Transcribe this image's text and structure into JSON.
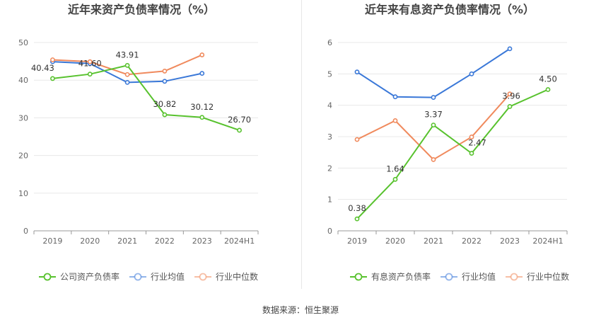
{
  "source_label": "数据来源：恒生聚源",
  "chart_data": [
    {
      "type": "line",
      "title": "近年来资产负债率情况（%）",
      "categories": [
        "2019",
        "2020",
        "2021",
        "2022",
        "2023",
        "2024H1"
      ],
      "ylim": [
        0,
        50
      ],
      "yticks": [
        "0",
        "10",
        "20",
        "30",
        "40",
        "50"
      ],
      "grid": true,
      "legend_position": "bottom",
      "series": [
        {
          "name": "公司资产负债率",
          "color": "#58c22e",
          "values": [
            40.43,
            41.6,
            43.91,
            30.82,
            30.12,
            26.7
          ],
          "labels": [
            "40.43",
            "41.60",
            "43.91",
            "30.82",
            "30.12",
            "26.70"
          ]
        },
        {
          "name": "行业均值",
          "color": "#3a78d8",
          "values": [
            44.9,
            44.4,
            39.4,
            39.7,
            41.8,
            null
          ]
        },
        {
          "name": "行业中位数",
          "color": "#f08a5d",
          "values": [
            45.4,
            44.9,
            41.5,
            42.4,
            46.7,
            null
          ]
        }
      ]
    },
    {
      "type": "line",
      "title": "近年来有息资产负债率情况（%）",
      "categories": [
        "2019",
        "2020",
        "2021",
        "2022",
        "2023",
        "2024H1"
      ],
      "ylim": [
        0,
        6
      ],
      "yticks": [
        "0",
        "1",
        "2",
        "3",
        "4",
        "5",
        "6"
      ],
      "grid": true,
      "legend_position": "bottom",
      "series": [
        {
          "name": "有息资产负债率",
          "color": "#58c22e",
          "values": [
            0.38,
            1.64,
            3.37,
            2.47,
            3.96,
            4.5
          ],
          "labels": [
            "0.38",
            "1.64",
            "3.37",
            "2.47",
            "3.96",
            "4.50"
          ]
        },
        {
          "name": "行业均值",
          "color": "#3a78d8",
          "values": [
            5.06,
            4.27,
            4.25,
            5.0,
            5.8,
            null
          ]
        },
        {
          "name": "行业中位数",
          "color": "#f08a5d",
          "values": [
            2.91,
            3.51,
            2.27,
            2.99,
            4.36,
            null
          ]
        }
      ]
    }
  ]
}
